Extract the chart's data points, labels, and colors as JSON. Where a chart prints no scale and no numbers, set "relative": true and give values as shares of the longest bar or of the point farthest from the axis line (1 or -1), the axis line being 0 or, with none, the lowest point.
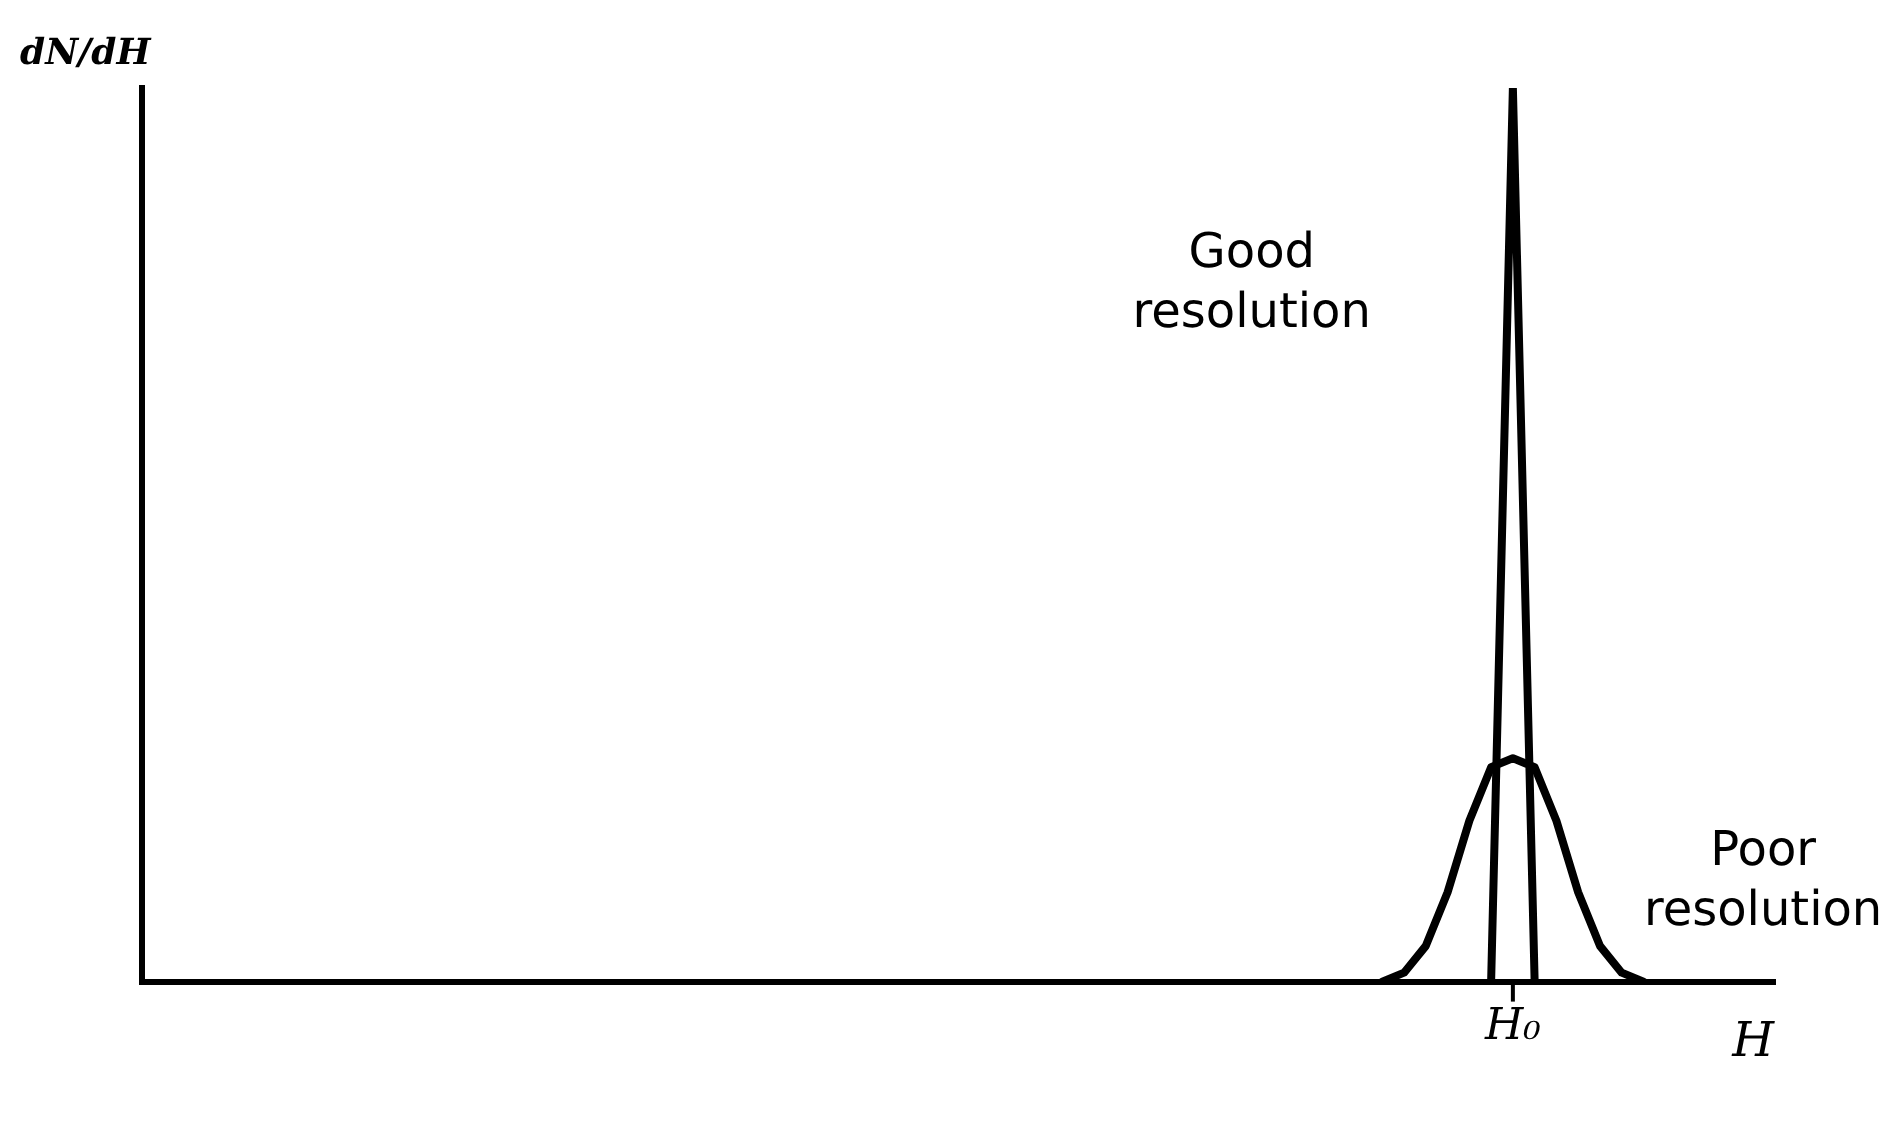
{
  "chart_data": {
    "type": "line",
    "relative": true,
    "xlabel": "H",
    "ylabel": "dN/dH",
    "categories": [
      null,
      null,
      null,
      null,
      null,
      null,
      null,
      null,
      null,
      null,
      null,
      null,
      null,
      null,
      null,
      null,
      null,
      null,
      null,
      null,
      null,
      null,
      null,
      null,
      null,
      null,
      null,
      null,
      null,
      null,
      null,
      null,
      null,
      null,
      null,
      null,
      null,
      null,
      null,
      null,
      null,
      null,
      null,
      null,
      null,
      null,
      null,
      null,
      null,
      null,
      null,
      null,
      null,
      null,
      null,
      null,
      null,
      null,
      null,
      null,
      null,
      null,
      null,
      null,
      null,
      null,
      null,
      null,
      null,
      null,
      null,
      null,
      null,
      null,
      null,
      null
    ],
    "series": [
      {
        "name": "Good resolution",
        "color": "#000000",
        "values": [
          null,
          null,
          null,
          null,
          null,
          null,
          null,
          null,
          null,
          null,
          null,
          null,
          null,
          null,
          null,
          null,
          null,
          null,
          null,
          null,
          null,
          null,
          null,
          null,
          null,
          null,
          null,
          null,
          null,
          null,
          null,
          null,
          null,
          null,
          null,
          null,
          null,
          null,
          null,
          null,
          null,
          null,
          null,
          null,
          null,
          null,
          null,
          null,
          null,
          null,
          null,
          null,
          null,
          null,
          null,
          null,
          null,
          null,
          null,
          null,
          null,
          null,
          0,
          1,
          0,
          null,
          null,
          null,
          null,
          null,
          null,
          null,
          null,
          null,
          null,
          null
        ]
      },
      {
        "name": "Poor resolution",
        "color": "#000000",
        "values": [
          null,
          null,
          null,
          null,
          null,
          null,
          null,
          null,
          null,
          null,
          null,
          null,
          null,
          null,
          null,
          null,
          null,
          null,
          null,
          null,
          null,
          null,
          null,
          null,
          null,
          null,
          null,
          null,
          null,
          null,
          null,
          null,
          null,
          null,
          null,
          null,
          null,
          null,
          null,
          null,
          null,
          null,
          null,
          null,
          null,
          null,
          null,
          null,
          null,
          null,
          null,
          null,
          null,
          null,
          null,
          null,
          null,
          0,
          0.01,
          0.04,
          0.1,
          0.18,
          0.24,
          0.25,
          0.24,
          0.18,
          0.1,
          0.04,
          0.01,
          0,
          null,
          null,
          null,
          null,
          null,
          null
        ]
      }
    ],
    "annotations": [
      "H₀"
    ],
    "tick_labels": "x",
    "grid": false,
    "legend": false,
    "marker": "none",
    "line_style": "solid"
  }
}
